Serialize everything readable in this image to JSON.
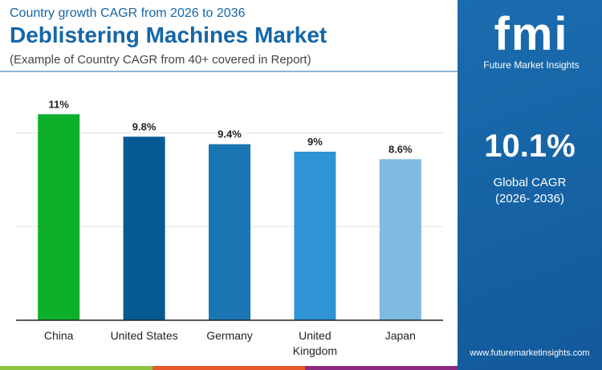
{
  "header": {
    "subtitle": "Country growth CAGR from 2026 to 2036",
    "title": "Deblistering Machines Market",
    "note": "(Example of Country CAGR from 40+ covered in Report)"
  },
  "panel": {
    "logo_text": "fmi",
    "logo_name": "Future Market Insights",
    "value": "10.1%",
    "label": "Global CAGR",
    "period": "(2026- 2036)",
    "url": "www.futuremarketinsights.com"
  },
  "colors": {
    "bars": [
      "#0db02b",
      "#065a94",
      "#1a75b3",
      "#2f94d6",
      "#7fbae2"
    ],
    "stripes": [
      "#8cc43f",
      "#e8572a",
      "#8c2a82"
    ]
  },
  "chart_data": {
    "type": "bar",
    "categories": [
      "China",
      "United States",
      "Germany",
      "United Kingdom",
      "Japan"
    ],
    "category_lines": [
      [
        "China"
      ],
      [
        "United States"
      ],
      [
        "Germany"
      ],
      [
        "United",
        "Kingdom"
      ],
      [
        "Japan"
      ]
    ],
    "values": [
      11,
      9.8,
      9.4,
      9,
      8.6
    ],
    "labels": [
      "11%",
      "9.8%",
      "9.4%",
      "9%",
      "8.6%"
    ],
    "ylim": [
      0,
      12
    ],
    "gridlines": [
      5,
      10
    ],
    "ylabel": "",
    "xlabel": ""
  }
}
